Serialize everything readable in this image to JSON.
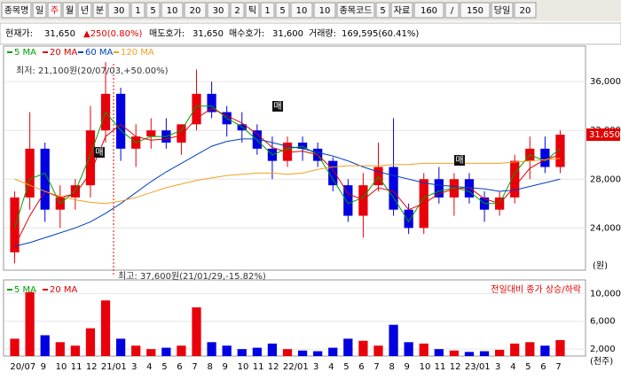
{
  "toolbar": [
    "종목명",
    "일",
    "주",
    "월",
    "년",
    "분",
    "30",
    "1",
    "5",
    "10",
    "20",
    "30",
    "2",
    "틱",
    "1",
    "5",
    "10",
    "10",
    "종목코드",
    "5",
    "자료",
    "160",
    "/",
    "150",
    "당일",
    "20"
  ],
  "quote": {
    "price_label": "현재가:",
    "price": "31,650",
    "change": "▲250(0.80%)",
    "ask_label": "매도호가:",
    "ask": "31,650",
    "bid_label": "매수호가:",
    "bid": "31,600",
    "volume_label": "거래량:",
    "volume": "169,595(60.41%)"
  },
  "chart_data": {
    "type": "candlestick",
    "categories": [
      "20/07",
      null,
      "9",
      "10",
      "11",
      "12",
      "21/01",
      null,
      "3",
      "4",
      "5",
      "6",
      "7",
      "8",
      "9",
      "10",
      "11",
      "12",
      "22/01",
      null,
      "3",
      "4",
      "5",
      "6",
      "7",
      "8",
      "9",
      "10",
      "11",
      "12",
      "23/01",
      null,
      "3",
      "4",
      "5",
      "6",
      "7"
    ],
    "open": [
      22000,
      26500,
      30500,
      25500,
      26500,
      27500,
      32000,
      35000,
      30500,
      31500,
      32000,
      31000,
      32500,
      35000,
      33500,
      32500,
      32000,
      30500,
      29500,
      31000,
      30500,
      29500,
      27500,
      25000,
      27500,
      29000,
      25500,
      24000,
      28000,
      26500,
      28000,
      26500,
      25500,
      26500,
      29500,
      30500,
      29000
    ],
    "high": [
      27000,
      33500,
      31000,
      27500,
      28000,
      34000,
      37600,
      35500,
      32500,
      33000,
      33000,
      32500,
      37000,
      36000,
      34000,
      33500,
      32500,
      31500,
      31500,
      31500,
      31000,
      29800,
      28000,
      28500,
      31000,
      33000,
      26000,
      28500,
      29000,
      28500,
      28500,
      27000,
      27000,
      30000,
      31500,
      31500,
      32000
    ],
    "low": [
      21100,
      25500,
      24500,
      24000,
      25500,
      26500,
      31000,
      29500,
      29000,
      30500,
      30500,
      30000,
      32000,
      33000,
      31500,
      31000,
      30000,
      28000,
      29000,
      29500,
      29000,
      27000,
      24500,
      23200,
      27000,
      25000,
      23500,
      23500,
      26000,
      25000,
      26000,
      24500,
      25000,
      26000,
      28000,
      28500,
      28500
    ],
    "close": [
      26500,
      30500,
      25500,
      26500,
      27500,
      32000,
      35000,
      30500,
      31500,
      32000,
      31000,
      32500,
      35000,
      33500,
      32500,
      32000,
      30500,
      29500,
      31000,
      30500,
      29500,
      27500,
      25000,
      27500,
      29000,
      25500,
      24000,
      28000,
      26500,
      28000,
      26500,
      25500,
      26500,
      29500,
      30500,
      29000,
      31650
    ],
    "up_color": "#e8000b",
    "down_color": "#0000e0",
    "ylim": [
      20900,
      38700
    ],
    "yticks": [
      {
        "value": 24000,
        "label": "24,000"
      },
      {
        "value": 28000,
        "label": "28,000"
      },
      {
        "value": 32000,
        "label": "32,000"
      },
      {
        "value": 36000,
        "label": "36,000"
      }
    ],
    "current": {
      "value": 31650,
      "label": "31,650"
    },
    "y_unit": "(원)",
    "ma": [
      {
        "name": "5 MA",
        "color": "#00a000",
        "values": [
          24000,
          28000,
          28500,
          26000,
          27000,
          30000,
          33500,
          32000,
          31000,
          31500,
          31500,
          32000,
          34000,
          34000,
          33000,
          32300,
          31200,
          30000,
          30500,
          30700,
          30000,
          28000,
          26000,
          26500,
          28200,
          26500,
          24500,
          26500,
          27000,
          27300,
          27000,
          26000,
          26000,
          28500,
          30000,
          29500,
          30500
        ]
      },
      {
        "name": "20 MA",
        "color": "#e00000",
        "values": [
          22500,
          25000,
          27000,
          26500,
          26800,
          28500,
          31500,
          32500,
          31500,
          31200,
          31300,
          31600,
          33000,
          33800,
          33200,
          32600,
          31700,
          30600,
          30200,
          30300,
          30000,
          28800,
          26800,
          26300,
          27300,
          27000,
          25500,
          26000,
          26800,
          27200,
          27300,
          26400,
          26000,
          27400,
          28900,
          29600,
          30000
        ]
      },
      {
        "name": "60 MA",
        "color": "#0040c0",
        "values": [
          22500,
          22800,
          23200,
          23600,
          24000,
          24500,
          25200,
          26000,
          26900,
          27800,
          28600,
          29300,
          30000,
          30700,
          31100,
          31300,
          31300,
          31000,
          30700,
          30500,
          30200,
          29900,
          29500,
          29000,
          28600,
          28300,
          28000,
          27700,
          27500,
          27400,
          27300,
          27200,
          27000,
          27100,
          27400,
          27700,
          28000
        ]
      },
      {
        "name": "120 MA",
        "color": "#f0a020",
        "values": [
          28000,
          27500,
          27000,
          26600,
          26300,
          26100,
          26000,
          26200,
          26500,
          26900,
          27300,
          27600,
          27900,
          28100,
          28300,
          28400,
          28500,
          28500,
          28400,
          28500,
          28800,
          29000,
          29100,
          29100,
          29100,
          29200,
          29200,
          29300,
          29300,
          29300,
          29300,
          29300,
          29300,
          29400,
          29500,
          29600,
          29700
        ]
      }
    ],
    "annotations": {
      "low": "최저: 21,100원(20/07/03,+50.00%)",
      "high": "최고: 37,600원(21/01/29,-15.82%)",
      "signals": [
        "매",
        "매",
        "매"
      ]
    },
    "volume": {
      "values": [
        3500,
        10200,
        4000,
        3000,
        2500,
        5000,
        9000,
        3500,
        2500,
        2000,
        2200,
        2500,
        8000,
        3000,
        2500,
        2000,
        2200,
        2800,
        2000,
        1800,
        1700,
        2200,
        3500,
        3200,
        2500,
        5500,
        3000,
        2800,
        2000,
        1800,
        1600,
        1700,
        1900,
        2800,
        3000,
        2500,
        3300
      ],
      "ylim": [
        1000,
        11700
      ],
      "yticks": [
        {
          "value": 2000,
          "label": "2,000"
        },
        {
          "value": 6000,
          "label": "6,000"
        },
        {
          "value": 10000,
          "label": "10,000"
        }
      ],
      "unit": "(천주)",
      "note": "전일대비 종가 상승/하락",
      "ma": [
        {
          "name": "5 MA",
          "color": "#00a000"
        },
        {
          "name": "20 MA",
          "color": "#e00000"
        }
      ]
    }
  }
}
